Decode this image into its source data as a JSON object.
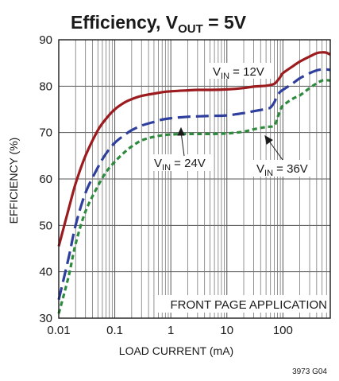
{
  "chart_data": {
    "type": "line",
    "title": {
      "main": "Efficiency, V",
      "sub": "OUT",
      "rest": " = 5V"
    },
    "xlabel": "LOAD CURRENT (mA)",
    "ylabel": "EFFICIENCY (%)",
    "xscale": "log",
    "xlim": [
      0.01,
      700
    ],
    "ylim": [
      30,
      90
    ],
    "xticks": [
      0.01,
      0.1,
      1,
      10,
      100
    ],
    "xtick_labels": [
      "0.01",
      "0.1",
      "1",
      "10",
      "100"
    ],
    "yticks": [
      30,
      40,
      50,
      60,
      70,
      80,
      90
    ],
    "ytick_labels": [
      "30",
      "40",
      "50",
      "60",
      "70",
      "80",
      "90"
    ],
    "grid": true,
    "series": [
      {
        "name": "V_IN = 12V",
        "color": "#9b1b1f",
        "dash": "solid",
        "x": [
          0.01,
          0.015,
          0.02,
          0.03,
          0.05,
          0.07,
          0.1,
          0.15,
          0.2,
          0.3,
          0.5,
          0.7,
          1,
          2,
          3,
          5,
          10,
          20,
          30,
          50,
          70,
          80,
          90,
          100,
          150,
          200,
          300,
          400,
          500,
          600,
          700
        ],
        "y": [
          45.5,
          53.5,
          59,
          65,
          70.5,
          73,
          75,
          76.5,
          77.2,
          77.9,
          78.4,
          78.7,
          78.9,
          79.1,
          79.2,
          79.2,
          79.3,
          79.6,
          79.9,
          80.1,
          80.5,
          81.2,
          82,
          82.8,
          84.3,
          85.3,
          86.4,
          87.1,
          87.3,
          87.2,
          86.8
        ]
      },
      {
        "name": "V_IN = 24V",
        "color": "#2f3f9e",
        "dash": "long",
        "x": [
          0.01,
          0.015,
          0.02,
          0.03,
          0.05,
          0.07,
          0.1,
          0.15,
          0.2,
          0.3,
          0.5,
          0.7,
          1,
          2,
          3,
          5,
          10,
          20,
          30,
          50,
          60,
          70,
          80,
          90,
          100,
          150,
          200,
          300,
          400,
          500,
          600,
          700
        ],
        "y": [
          34,
          43,
          50,
          57,
          62.5,
          65.5,
          67.8,
          69.5,
          70.5,
          71.5,
          72.3,
          72.8,
          73.1,
          73.4,
          73.5,
          73.6,
          73.7,
          74.2,
          74.6,
          75.1,
          75.4,
          76.5,
          78,
          78.8,
          79.2,
          80.6,
          81.7,
          82.8,
          83.4,
          83.6,
          83.6,
          83.5
        ]
      },
      {
        "name": "V_IN = 36V",
        "color": "#2e8b3e",
        "dash": "short",
        "x": [
          0.01,
          0.015,
          0.02,
          0.03,
          0.05,
          0.07,
          0.1,
          0.15,
          0.2,
          0.3,
          0.5,
          0.7,
          1,
          2,
          3,
          5,
          10,
          20,
          30,
          50,
          70,
          80,
          90,
          100,
          150,
          200,
          300,
          400,
          500,
          600,
          700
        ],
        "y": [
          31,
          39,
          46,
          53,
          58.5,
          61.5,
          63.7,
          65.8,
          67,
          68.3,
          69.1,
          69.4,
          69.6,
          69.7,
          69.7,
          69.7,
          69.8,
          70.2,
          70.7,
          71.2,
          71.5,
          73.2,
          74.8,
          75.8,
          77.3,
          78,
          79.6,
          80.6,
          81.2,
          81.3,
          81.2
        ]
      }
    ],
    "annotations": [
      {
        "pre": "V",
        "sub": "IN",
        "post": " = 12V"
      },
      {
        "pre": "V",
        "sub": "IN",
        "post": " = 24V"
      },
      {
        "pre": "V",
        "sub": "IN",
        "post": " = 36V"
      },
      {
        "text": "FRONT PAGE APPLICATION"
      }
    ],
    "figure_code": "3973 G04"
  }
}
